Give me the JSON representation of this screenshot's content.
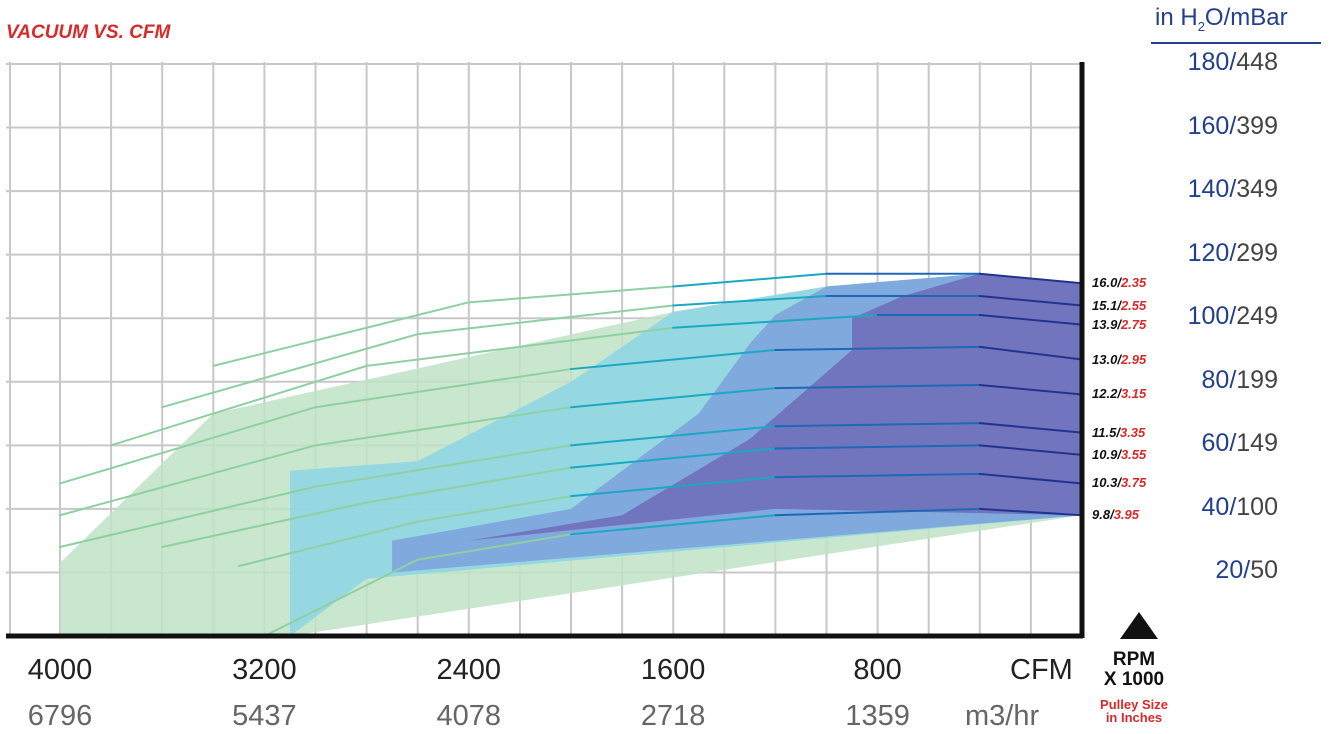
{
  "chart_data": {
    "type": "area",
    "title": "VACUUM VS. CFM",
    "y_unit_label": {
      "prefix": "in H",
      "sub": "2",
      "suffix": "O/mBar"
    },
    "x_axis": {
      "reversed": true,
      "range_cfm": [
        0,
        4000
      ],
      "ticks_cfm": [
        "4000",
        "3200",
        "2400",
        "1600",
        "800"
      ],
      "ticks_m3": [
        "6796",
        "5437",
        "4078",
        "2718",
        "1359"
      ],
      "cfm_label": "CFM",
      "m3_label": "m3/hr"
    },
    "y_axis": {
      "range_inh2o": [
        0,
        180
      ],
      "ticks": [
        {
          "h2o": "180",
          "mbar": "448"
        },
        {
          "h2o": "160",
          "mbar": "399"
        },
        {
          "h2o": "140",
          "mbar": "349"
        },
        {
          "h2o": "120",
          "mbar": "299"
        },
        {
          "h2o": "100",
          "mbar": "249"
        },
        {
          "h2o": "80",
          "mbar": "199"
        },
        {
          "h2o": "60",
          "mbar": "149"
        },
        {
          "h2o": "40",
          "mbar": "100"
        },
        {
          "h2o": "20",
          "mbar": "50"
        }
      ]
    },
    "grid": true,
    "rpm_label": [
      "RPM",
      "X 1000"
    ],
    "pulley_label": [
      "Pulley Size",
      "in Inches"
    ],
    "colors": {
      "green": "#bfe3c5",
      "cyan": "#8fd6e3",
      "blue": "#7da4dd",
      "purple": "#6f6fba",
      "line_green": "#8fd0a2",
      "line_teal": "#1aa8c4",
      "line_blue": "#1f68b8",
      "line_navy": "#22338f",
      "label_red": "#d72a2a",
      "axis_blue": "#23408e"
    },
    "series": [
      {
        "rpm": "16.0",
        "pulley": "2.35",
        "cfm": [
          3400,
          2400,
          1600,
          1000,
          400,
          0
        ],
        "inh2o": [
          85,
          105,
          110,
          114,
          114,
          111
        ]
      },
      {
        "rpm": "15.1",
        "pulley": "2.55",
        "cfm": [
          3600,
          2600,
          1600,
          1000,
          400,
          0
        ],
        "inh2o": [
          72,
          95,
          104,
          107,
          107,
          104
        ]
      },
      {
        "rpm": "13.9",
        "pulley": "2.75",
        "cfm": [
          3800,
          2800,
          1600,
          800,
          400,
          0
        ],
        "inh2o": [
          60,
          85,
          97,
          101,
          101,
          98
        ]
      },
      {
        "rpm": "13.0",
        "pulley": "2.95",
        "cfm": [
          4000,
          3000,
          2000,
          1200,
          400,
          0
        ],
        "inh2o": [
          48,
          72,
          84,
          90,
          91,
          87
        ]
      },
      {
        "rpm": "12.2",
        "pulley": "3.15",
        "cfm": [
          4000,
          3000,
          2000,
          1200,
          400,
          0
        ],
        "inh2o": [
          38,
          60,
          72,
          78,
          79,
          76
        ]
      },
      {
        "rpm": "11.5",
        "pulley": "3.35",
        "cfm": [
          4000,
          3000,
          2000,
          1200,
          400,
          0
        ],
        "inh2o": [
          28,
          47,
          60,
          66,
          67,
          64
        ]
      },
      {
        "rpm": "10.9",
        "pulley": "3.55",
        "cfm": [
          3600,
          2800,
          2000,
          1200,
          400,
          0
        ],
        "inh2o": [
          28,
          42,
          53,
          59,
          60,
          57
        ]
      },
      {
        "rpm": "10.3",
        "pulley": "3.75",
        "cfm": [
          3300,
          2600,
          2000,
          1200,
          400,
          0
        ],
        "inh2o": [
          22,
          36,
          44,
          50,
          51,
          48
        ]
      },
      {
        "rpm": "9.8",
        "pulley": "3.95",
        "cfm": [
          3200,
          2600,
          2000,
          1200,
          400,
          0
        ],
        "inh2o": [
          0,
          24,
          32,
          38,
          40,
          38
        ]
      }
    ],
    "zones": [
      {
        "color": "green",
        "cfm": [
          4000,
          3400,
          1600,
          1000,
          400,
          0,
          0,
          3100,
          4000
        ],
        "inh2o": [
          23,
          70,
          102,
          110,
          114,
          111,
          38,
          0,
          0
        ]
      },
      {
        "color": "cyan",
        "cfm": [
          3100,
          2600,
          2000,
          1600,
          1000,
          400,
          0,
          0,
          2800,
          3100
        ],
        "inh2o": [
          52,
          55,
          80,
          102,
          110,
          114,
          111,
          38,
          18,
          0
        ]
      },
      {
        "color": "blue",
        "cfm": [
          2700,
          2000,
          1500,
          1300,
          1200,
          1000,
          400,
          0,
          0,
          2700
        ],
        "inh2o": [
          30,
          40,
          70,
          92,
          101,
          110,
          114,
          111,
          38,
          20
        ]
      },
      {
        "color": "purple",
        "cfm": [
          2400,
          1800,
          1300,
          900,
          900,
          700,
          400,
          0,
          0,
          1200,
          2400
        ],
        "inh2o": [
          30,
          38,
          62,
          90,
          100,
          107,
          114,
          111,
          38,
          40,
          30
        ]
      }
    ]
  }
}
